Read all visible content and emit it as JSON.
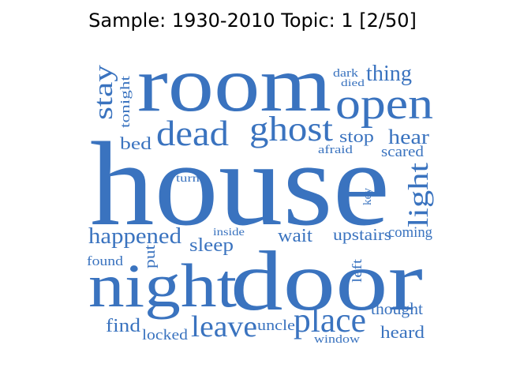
{
  "title": "Sample: 1930-2010 Topic: 1 [2/50]",
  "colors": {
    "word": "#3a73bf",
    "title": "#000000",
    "background": "#ffffff"
  },
  "words": {
    "house": "house",
    "room": "room",
    "door": "door",
    "night": "night",
    "open": "open",
    "ghost": "ghost",
    "dead": "dead",
    "place": "place",
    "leave": "leave",
    "light": "light",
    "stay": "stay",
    "happened": "happened",
    "thing": "thing",
    "hear": "hear",
    "sleep": "sleep",
    "upstairs": "upstairs",
    "wait": "wait",
    "find": "find",
    "locked": "locked",
    "heard": "heard",
    "thought": "thought",
    "uncle": "uncle",
    "window": "window",
    "coming": "coming",
    "scared": "scared",
    "afraid": "afraid",
    "stop": "stop",
    "bed": "bed",
    "tonight": "tonight",
    "dark": "dark",
    "died": "died",
    "turn": "turn",
    "key": "key",
    "inside": "inside",
    "put": "put",
    "found": "found",
    "left": "left"
  }
}
